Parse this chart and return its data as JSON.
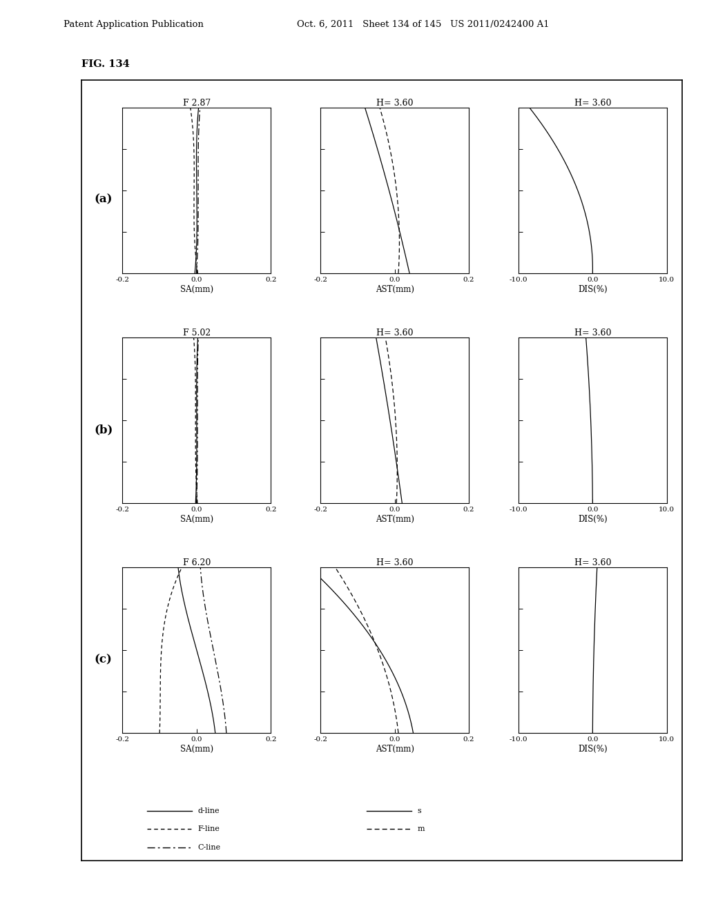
{
  "fig_label": "FIG. 134",
  "header_left": "Patent Application Publication",
  "header_mid": "Oct. 6, 2011   Sheet 134 of 145   US 2011/0242400 A1",
  "rows": [
    {
      "label": "(a)",
      "sa_title": "F 2.87",
      "ast_title": "H= 3.60",
      "dis_title": "H= 3.60"
    },
    {
      "label": "(b)",
      "sa_title": "F 5.02",
      "ast_title": "H= 3.60",
      "dis_title": "H= 3.60"
    },
    {
      "label": "(c)",
      "sa_title": "F 6.20",
      "ast_title": "H= 3.60",
      "dis_title": "H= 3.60"
    }
  ],
  "sa_xlim": [
    -0.2,
    0.2
  ],
  "sa_xticks": [
    -0.2,
    0.0,
    0.2
  ],
  "sa_xticklabels": [
    "-0.2",
    "0.0",
    "0.2"
  ],
  "ast_xlim": [
    -0.2,
    0.2
  ],
  "ast_xticks": [
    -0.2,
    0.0,
    0.2
  ],
  "ast_xticklabels": [
    "-0.2",
    "0.0",
    "0.2"
  ],
  "dis_xlim": [
    -10.0,
    10.0
  ],
  "dis_xticks": [
    -10.0,
    0.0,
    10.0
  ],
  "dis_xticklabels": [
    "-10.0",
    "0.0",
    "10.0"
  ],
  "ylim": [
    0.0,
    1.0
  ],
  "yticks": [
    0.0,
    0.25,
    0.5,
    0.75,
    1.0
  ],
  "background_color": "#ffffff"
}
